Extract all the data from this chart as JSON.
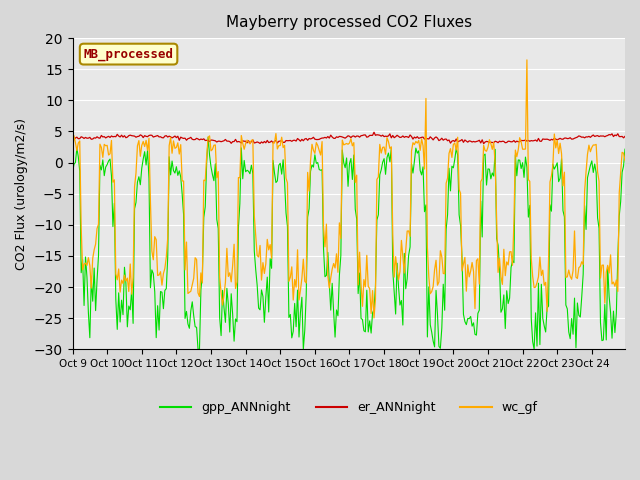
{
  "title": "Mayberry processed CO2 Fluxes",
  "ylabel": "CO2 Flux (urology/m2/s)",
  "ylim": [
    -30,
    20
  ],
  "yticks": [
    -30,
    -25,
    -20,
    -15,
    -10,
    -5,
    0,
    5,
    10,
    15,
    20
  ],
  "bg_color": "#e8e8e8",
  "fig_bg_color": "#d8d8d8",
  "grid_color": "#ffffff",
  "line_colors": {
    "gpp": "#00dd00",
    "er": "#cc0000",
    "wc": "#ffaa00"
  },
  "legend_labels": [
    "gpp_ANNnight",
    "er_ANNnight",
    "wc_gf"
  ],
  "watermark_text": "MB_processed",
  "watermark_color": "#990000",
  "watermark_bg": "#ffffcc",
  "watermark_border": "#aa8800",
  "n_days": 16,
  "n_per_day": 24,
  "xtick_labels": [
    "Oct 9",
    "Oct 10",
    "Oct 11",
    "Oct 12",
    "Oct 13",
    "Oct 14",
    "Oct 15",
    "Oct 16",
    "Oct 17",
    "Oct 18",
    "Oct 19",
    "Oct 20",
    "Oct 21",
    "Oct 22",
    "Oct 23",
    "Oct 24"
  ]
}
